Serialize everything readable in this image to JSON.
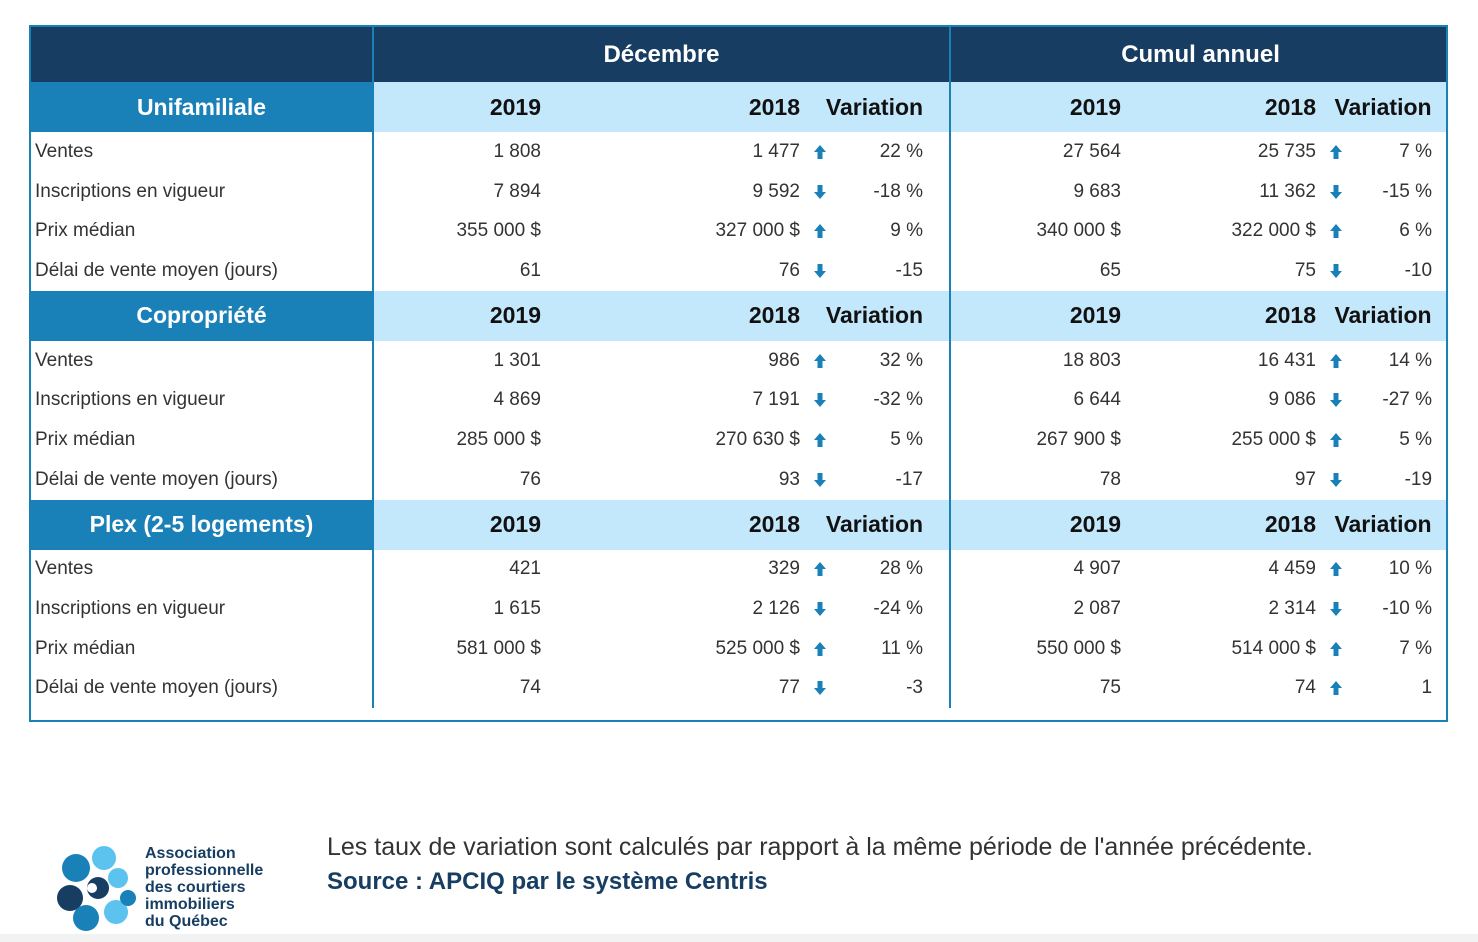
{
  "header": {
    "period1": "Décembre",
    "period2": "Cumul annuel"
  },
  "sections": [
    {
      "title": "Unifamiliale",
      "cols": [
        "2019",
        "2018",
        "Variation",
        "2019",
        "2018",
        "Variation"
      ],
      "rows": [
        {
          "label": "Ventes",
          "d19": "1 808",
          "d18": "1 477",
          "d_dir": "up",
          "d_var": "22 %",
          "c19": "27 564",
          "c18": "25 735",
          "c_dir": "up",
          "c_var": "7 %"
        },
        {
          "label": "Inscriptions en vigueur",
          "d19": "7 894",
          "d18": "9 592",
          "d_dir": "down",
          "d_var": "-18 %",
          "c19": "9 683",
          "c18": "11 362",
          "c_dir": "down",
          "c_var": "-15 %"
        },
        {
          "label": "Prix médian",
          "d19": "355 000 $",
          "d18": "327 000 $",
          "d_dir": "up",
          "d_var": "9 %",
          "c19": "340 000 $",
          "c18": "322 000 $",
          "c_dir": "up",
          "c_var": "6 %"
        },
        {
          "label": "Délai de vente moyen (jours)",
          "d19": "61",
          "d18": "76",
          "d_dir": "down",
          "d_var": "-15",
          "c19": "65",
          "c18": "75",
          "c_dir": "down",
          "c_var": "-10"
        }
      ]
    },
    {
      "title": "Copropriété",
      "cols": [
        "2019",
        "2018",
        "Variation",
        "2019",
        "2018",
        "Variation"
      ],
      "rows": [
        {
          "label": "Ventes",
          "d19": "1 301",
          "d18": "986",
          "d_dir": "up",
          "d_var": "32 %",
          "c19": "18 803",
          "c18": "16 431",
          "c_dir": "up",
          "c_var": "14 %"
        },
        {
          "label": "Inscriptions en vigueur",
          "d19": "4 869",
          "d18": "7 191",
          "d_dir": "down",
          "d_var": "-32 %",
          "c19": "6 644",
          "c18": "9 086",
          "c_dir": "down",
          "c_var": "-27 %"
        },
        {
          "label": "Prix médian",
          "d19": "285 000 $",
          "d18": "270 630 $",
          "d_dir": "up",
          "d_var": "5 %",
          "c19": "267 900 $",
          "c18": "255 000 $",
          "c_dir": "up",
          "c_var": "5 %"
        },
        {
          "label": "Délai de vente moyen (jours)",
          "d19": "76",
          "d18": "93",
          "d_dir": "down",
          "d_var": "-17",
          "c19": "78",
          "c18": "97",
          "c_dir": "down",
          "c_var": "-19"
        }
      ]
    },
    {
      "title": "Plex (2-5 logements)",
      "cols": [
        "2019",
        "2018",
        "Variation",
        "2019",
        "2018",
        "Variation"
      ],
      "rows": [
        {
          "label": "Ventes",
          "d19": "421",
          "d18": "329",
          "d_dir": "up",
          "d_var": "28 %",
          "c19": "4 907",
          "c18": "4 459",
          "c_dir": "up",
          "c_var": "10 %"
        },
        {
          "label": "Inscriptions en vigueur",
          "d19": "1 615",
          "d18": "2 126",
          "d_dir": "down",
          "d_var": "-24 %",
          "c19": "2 087",
          "c18": "2 314",
          "c_dir": "down",
          "c_var": "-10 %"
        },
        {
          "label": "Prix médian",
          "d19": "581 000 $",
          "d18": "525 000 $",
          "d_dir": "up",
          "d_var": "11 %",
          "c19": "550 000 $",
          "c18": "514 000 $",
          "c_dir": "up",
          "c_var": "7 %"
        },
        {
          "label": "Délai de vente moyen (jours)",
          "d19": "74",
          "d18": "77",
          "d_dir": "down",
          "d_var": "-3",
          "c19": "75",
          "c18": "74",
          "c_dir": "up",
          "c_var": "1"
        }
      ]
    }
  ],
  "footer": {
    "logo_lines": [
      "Association",
      "professionnelle",
      "des courtiers",
      "immobiliers",
      "du Québec"
    ],
    "note": "Les taux de variation sont calculés par rapport à la même période de l'année précédente.",
    "source": "Source : APCIQ par le système Centris"
  },
  "colors": {
    "navy": "#173e62",
    "blue": "#1a80b8",
    "light": "#c3e7fb"
  }
}
